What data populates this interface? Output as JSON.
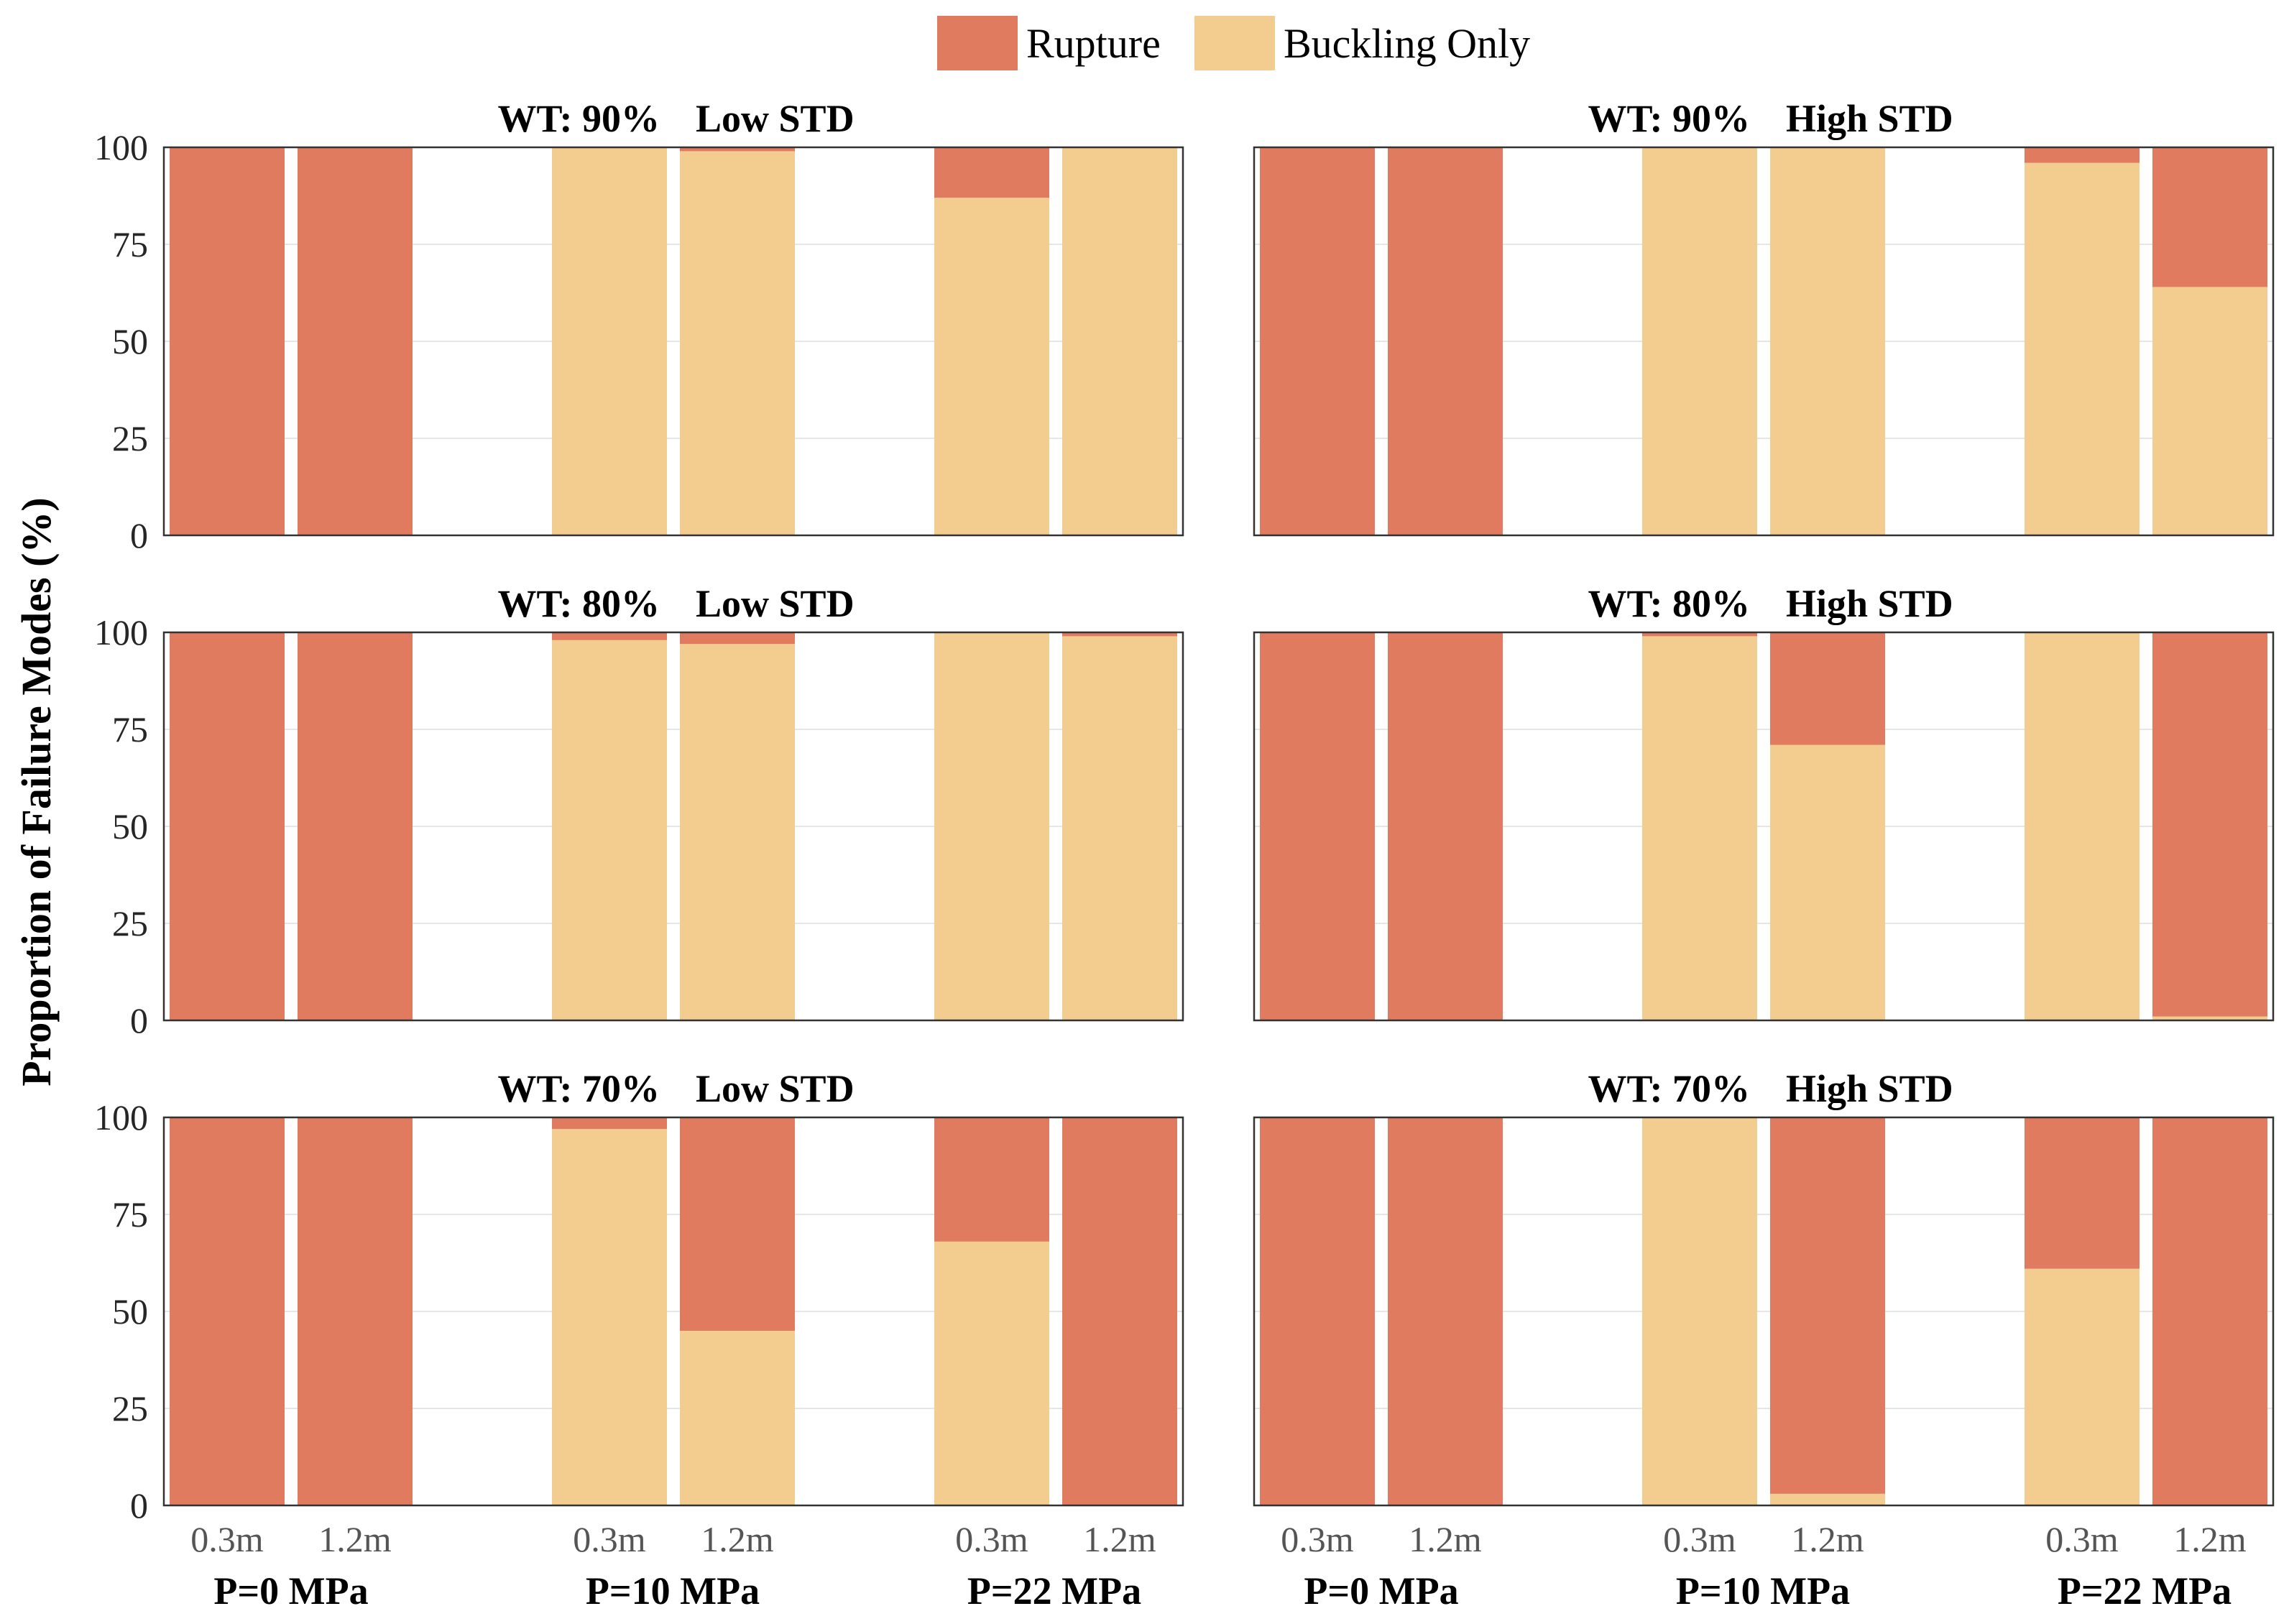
{
  "chart_data": {
    "type": "bar",
    "stacked": true,
    "ylabel": "Proportion of Failure Modes (%)",
    "ylim": [
      0,
      100
    ],
    "yticks": [
      "0",
      "25",
      "50",
      "75",
      "100"
    ],
    "grid": true,
    "legend": {
      "placement": "top-center",
      "entries": [
        {
          "name": "Rupture",
          "color": "#E07B5F"
        },
        {
          "name": "Buckling Only",
          "color": "#F2CD8F"
        }
      ]
    },
    "categories": [
      "0.3m",
      "1.2m",
      "0.3m",
      "1.2m",
      "0.3m",
      "1.2m"
    ],
    "groups": [
      "P=0 MPa",
      "P=10 MPa",
      "P=22 MPa"
    ],
    "panels": [
      {
        "title_wt": "WT: 90%",
        "title_std": "Low STD",
        "series": [
          {
            "name": "Buckling Only",
            "values": [
              0,
              0,
              100,
              99,
              87,
              100
            ]
          },
          {
            "name": "Rupture",
            "values": [
              100,
              100,
              0,
              1,
              13,
              0
            ]
          }
        ]
      },
      {
        "title_wt": "WT: 90%",
        "title_std": "High STD",
        "series": [
          {
            "name": "Buckling Only",
            "values": [
              0,
              0,
              100,
              100,
              96,
              64
            ]
          },
          {
            "name": "Rupture",
            "values": [
              100,
              100,
              0,
              0,
              4,
              36
            ]
          }
        ]
      },
      {
        "title_wt": "WT: 80%",
        "title_std": "Low STD",
        "series": [
          {
            "name": "Buckling Only",
            "values": [
              0,
              0,
              98,
              97,
              100,
              99
            ]
          },
          {
            "name": "Rupture",
            "values": [
              100,
              100,
              2,
              3,
              0,
              1
            ]
          }
        ]
      },
      {
        "title_wt": "WT: 80%",
        "title_std": "High STD",
        "series": [
          {
            "name": "Buckling Only",
            "values": [
              0,
              0,
              99,
              71,
              100,
              1
            ]
          },
          {
            "name": "Rupture",
            "values": [
              100,
              100,
              1,
              29,
              0,
              99
            ]
          }
        ]
      },
      {
        "title_wt": "WT: 70%",
        "title_std": "Low STD",
        "series": [
          {
            "name": "Buckling Only",
            "values": [
              0,
              0,
              97,
              45,
              68,
              0
            ]
          },
          {
            "name": "Rupture",
            "values": [
              100,
              100,
              3,
              55,
              32,
              100
            ]
          }
        ]
      },
      {
        "title_wt": "WT: 70%",
        "title_std": "High STD",
        "series": [
          {
            "name": "Buckling Only",
            "values": [
              0,
              0,
              100,
              3,
              61,
              0
            ]
          },
          {
            "name": "Rupture",
            "values": [
              100,
              100,
              0,
              97,
              39,
              100
            ]
          }
        ]
      }
    ]
  }
}
